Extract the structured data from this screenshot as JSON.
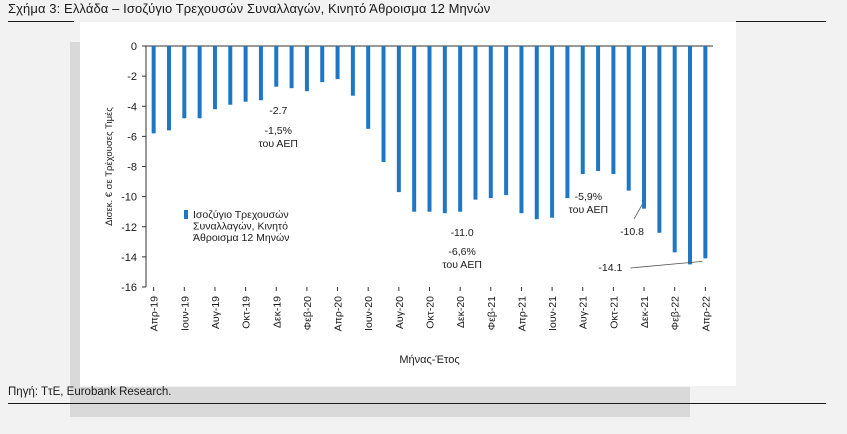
{
  "figure": {
    "title": "Σχήμα 3: Ελλάδα – Ισοζύγιο Τρεχουσών Συναλλαγών, Κινητό Άθροισμα 12 Μηνών",
    "source": "Πηγή: ΤτΕ, Eurobank Research."
  },
  "colors": {
    "bar": "#1f77c4",
    "background": "#f2f2f2",
    "panel": "#ffffff",
    "band": "#d9d9d9"
  },
  "chart_data": {
    "type": "bar",
    "title": "Ελλάδα – Ισοζύγιο Τρεχουσών Συναλλαγών, Κινητό Άθροισμα 12 Μηνών",
    "xlabel": "Μήνας-Έτος",
    "ylabel": "Δισεκ. € σε Τρέχουσες Τιμές",
    "ylim": [
      -16,
      0
    ],
    "yticks": [
      0,
      -2,
      -4,
      -6,
      -8,
      -10,
      -12,
      -14,
      -16
    ],
    "grid": false,
    "legend": {
      "label": "Ισοζύγιο Τρεχουσών Συναλλαγών, Κινητό Άθροισμα 12 Μηνών",
      "lines": [
        "Ισοζύγιο Τρεχουσών",
        "Συναλλαγών, Κινητό",
        "Άθροισμα 12 Μηνών"
      ],
      "position": "center-left"
    },
    "tick_labels": [
      "Απρ-19",
      "Ιουν-19",
      "Αυγ-19",
      "Οκτ-19",
      "Δεκ-19",
      "Φεβ-20",
      "Απρ-20",
      "Ιουν-20",
      "Αυγ-20",
      "Οκτ-20",
      "Δεκ-20",
      "Φεβ-21",
      "Απρ-21",
      "Ιουν-21",
      "Αυγ-21",
      "Οκτ-21",
      "Δεκ-21",
      "Φεβ-22",
      "Απρ-22"
    ],
    "categories": [
      "Απρ-19",
      "Μαϊ-19",
      "Ιουν-19",
      "Ιουλ-19",
      "Αυγ-19",
      "Σεπ-19",
      "Οκτ-19",
      "Νοε-19",
      "Δεκ-19",
      "Ιαν-20",
      "Φεβ-20",
      "Μαρ-20",
      "Απρ-20",
      "Μαϊ-20",
      "Ιουν-20",
      "Ιουλ-20",
      "Αυγ-20",
      "Σεπ-20",
      "Οκτ-20",
      "Νοε-20",
      "Δεκ-20",
      "Ιαν-21",
      "Φεβ-21",
      "Μαρ-21",
      "Απρ-21",
      "Μαϊ-21",
      "Ιουν-21",
      "Ιουλ-21",
      "Αυγ-21",
      "Σεπ-21",
      "Οκτ-21",
      "Νοε-21",
      "Δεκ-21",
      "Ιαν-22",
      "Φεβ-22",
      "Μαρ-22",
      "Απρ-22"
    ],
    "series": [
      {
        "name": "Ισοζύγιο Τρεχουσών Συναλλαγών, Κινητό Άθροισμα 12 Μηνών",
        "values": [
          -5.8,
          -5.6,
          -4.8,
          -4.8,
          -4.2,
          -3.9,
          -3.7,
          -3.6,
          -2.7,
          -2.8,
          -3.0,
          -2.4,
          -2.2,
          -3.3,
          -5.5,
          -7.7,
          -9.7,
          -11.0,
          -11.0,
          -11.1,
          -11.0,
          -10.2,
          -10.1,
          -9.9,
          -11.1,
          -11.5,
          -11.4,
          -10.1,
          -8.5,
          -8.3,
          -8.5,
          -9.6,
          -10.8,
          -12.4,
          -13.7,
          -14.5,
          -14.1
        ]
      }
    ],
    "annotations": [
      {
        "lines": [
          "-2.7",
          "-1,5%",
          "του ΑΕΠ"
        ],
        "value": -2.7,
        "category": "Δεκ-19"
      },
      {
        "lines": [
          "-11.0",
          "-6,6%",
          "του ΑΕΠ"
        ],
        "value": -11.0,
        "category": "Δεκ-20"
      },
      {
        "lines": [
          "-5,9%",
          "του ΑΕΠ"
        ],
        "category": "Οκτ-21"
      },
      {
        "lines": [
          "-10.8"
        ],
        "value": -10.8,
        "category": "Δεκ-21"
      },
      {
        "lines": [
          "-14.1"
        ],
        "value": -14.1,
        "category": "Απρ-22"
      }
    ]
  }
}
